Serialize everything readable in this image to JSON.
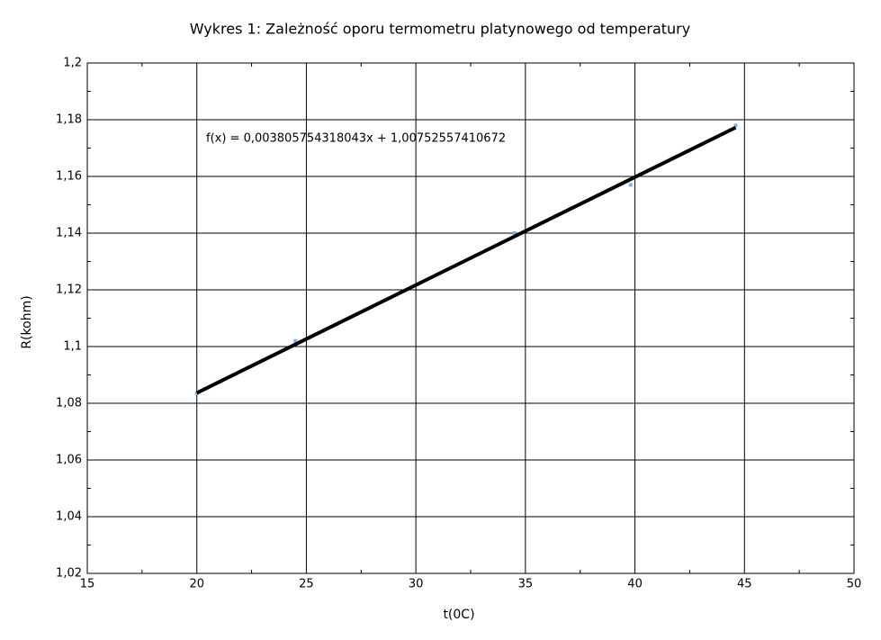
{
  "chart_data": {
    "type": "scatter",
    "title": "Wykres 1: Zależność oporu termometru platynowego od temperatury",
    "x_label": "t(0C)",
    "y_label": "R(kohm)",
    "x": [
      20,
      24.5,
      34.5,
      39.8,
      44.6
    ],
    "series": [
      {
        "color": "#7ab4e8",
        "values": [
          1.0835,
          1.102,
          1.14,
          1.157,
          1.178
        ]
      }
    ],
    "trendline": {
      "slope": 0.003805754318043,
      "intercept": 1.00752557410672,
      "label": "f(x) = 0,003805754318043x + 1,00752557410672",
      "color": "#000000"
    },
    "xlim": [
      15,
      50
    ],
    "ylim": [
      1.02,
      1.2
    ],
    "xticks": [
      15,
      20,
      25,
      30,
      35,
      40,
      45,
      50
    ],
    "yticks": [
      {
        "value": 1.02,
        "label": "1,02"
      },
      {
        "value": 1.04,
        "label": "1,04"
      },
      {
        "value": 1.06,
        "label": "1,06"
      },
      {
        "value": 1.08,
        "label": "1,08"
      },
      {
        "value": 1.1,
        "label": "1,1"
      },
      {
        "value": 1.12,
        "label": "1,12"
      },
      {
        "value": 1.14,
        "label": "1,14"
      },
      {
        "value": 1.16,
        "label": "1,16"
      },
      {
        "value": 1.18,
        "label": "1,18"
      },
      {
        "value": 1.2,
        "label": "1,2"
      }
    ],
    "grid": true
  }
}
